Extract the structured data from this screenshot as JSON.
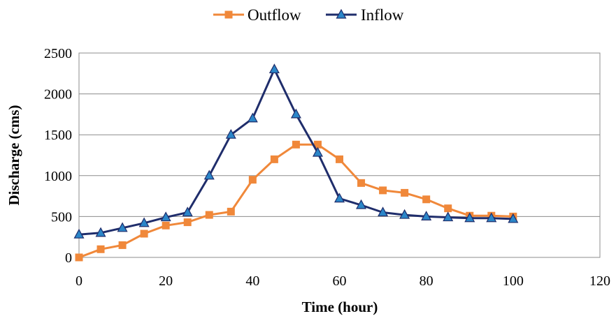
{
  "chart_data": {
    "type": "line",
    "title": "",
    "xlabel": "Time (hour)",
    "ylabel": "Discharge (cms)",
    "xlim": [
      0,
      120
    ],
    "ylim": [
      0,
      2500
    ],
    "xticks": [
      0,
      20,
      40,
      60,
      80,
      100,
      120
    ],
    "yticks": [
      0,
      500,
      1000,
      1500,
      2000,
      2500
    ],
    "grid": "horizontal",
    "legend_position": "top",
    "series": [
      {
        "name": "Outflow",
        "color": "#f0883a",
        "marker": "square",
        "x": [
          0,
          5,
          10,
          15,
          20,
          25,
          30,
          35,
          40,
          45,
          50,
          55,
          60,
          65,
          70,
          75,
          80,
          85,
          90,
          95,
          100
        ],
        "y": [
          0,
          100,
          150,
          290,
          390,
          430,
          520,
          560,
          950,
          1200,
          1380,
          1380,
          1200,
          910,
          820,
          790,
          710,
          600,
          510,
          510,
          500
        ]
      },
      {
        "name": "Inflow",
        "color": "#1f2d6b",
        "marker": "triangle",
        "marker_fill": "#2b86c8",
        "x": [
          0,
          5,
          10,
          15,
          20,
          25,
          30,
          35,
          40,
          45,
          50,
          55,
          60,
          65,
          70,
          75,
          80,
          85,
          90,
          95,
          100
        ],
        "y": [
          280,
          300,
          360,
          420,
          490,
          550,
          1000,
          1500,
          1700,
          2300,
          1750,
          1280,
          720,
          640,
          550,
          520,
          500,
          490,
          480,
          480,
          470
        ]
      }
    ]
  }
}
